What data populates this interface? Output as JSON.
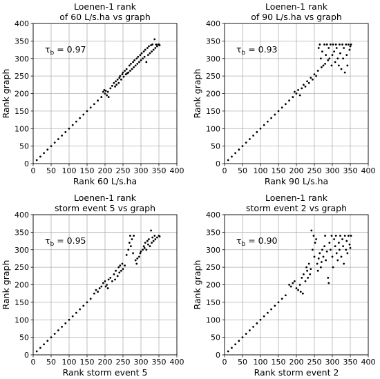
{
  "figure": {
    "panels": [
      {
        "id": "p60",
        "title_line1": "Loenen-1 rank",
        "title_line2": "of 60 L/s.ha vs graph",
        "xlabel": "Rank 60 L/s.ha",
        "ylabel": "Rank graph",
        "tau_label": "τ",
        "tau_sub": "b",
        "tau_value": " = 0.97"
      },
      {
        "id": "p90",
        "title_line1": "Loenen-1 rank",
        "title_line2": "of 90 L/s.ha vs graph",
        "xlabel": "Rank 90 L/s.ha",
        "ylabel": "Rank graph",
        "tau_label": "τ",
        "tau_sub": "b",
        "tau_value": " = 0.93"
      },
      {
        "id": "ps5",
        "title_line1": "Loenen-1 rank",
        "title_line2": "storm event 5 vs graph",
        "xlabel": "Rank storm event 5",
        "ylabel": "Rank graph",
        "tau_label": "τ",
        "tau_sub": "b",
        "tau_value": " = 0.95"
      },
      {
        "id": "ps2",
        "title_line1": "Loenen-1 rank",
        "title_line2": "storm event 2 vs graph",
        "xlabel": "Rank storm event 2",
        "ylabel": "Rank graph",
        "tau_label": "τ",
        "tau_sub": "b",
        "tau_value": " = 0.90"
      }
    ]
  },
  "chart_data": [
    {
      "type": "scatter",
      "title": "Loenen-1 rank of 60 L/s.ha vs graph",
      "xlabel": "Rank 60 L/s.ha",
      "ylabel": "Rank graph",
      "xlim": [
        0,
        400
      ],
      "ylim": [
        0,
        400
      ],
      "xticks": [
        "0",
        "50",
        "100",
        "150",
        "200",
        "250",
        "300",
        "350",
        "400"
      ],
      "yticks": [
        "0",
        "50",
        "100",
        "150",
        "200",
        "250",
        "300",
        "350",
        "400"
      ],
      "grid": true,
      "marker_color": "#000000",
      "points": [
        [
          10,
          10
        ],
        [
          20,
          20
        ],
        [
          30,
          30
        ],
        [
          40,
          40
        ],
        [
          50,
          50
        ],
        [
          60,
          60
        ],
        [
          70,
          70
        ],
        [
          80,
          80
        ],
        [
          90,
          90
        ],
        [
          100,
          100
        ],
        [
          110,
          110
        ],
        [
          120,
          120
        ],
        [
          130,
          130
        ],
        [
          140,
          140
        ],
        [
          150,
          150
        ],
        [
          160,
          160
        ],
        [
          170,
          170
        ],
        [
          180,
          180
        ],
        [
          190,
          190
        ],
        [
          195,
          205
        ],
        [
          198,
          210
        ],
        [
          200,
          200
        ],
        [
          202,
          208
        ],
        [
          205,
          195
        ],
        [
          208,
          205
        ],
        [
          210,
          190
        ],
        [
          215,
          215
        ],
        [
          220,
          222
        ],
        [
          225,
          230
        ],
        [
          228,
          220
        ],
        [
          230,
          235
        ],
        [
          232,
          225
        ],
        [
          235,
          240
        ],
        [
          238,
          230
        ],
        [
          240,
          245
        ],
        [
          242,
          250
        ],
        [
          245,
          240
        ],
        [
          248,
          255
        ],
        [
          250,
          260
        ],
        [
          252,
          248
        ],
        [
          255,
          265
        ],
        [
          258,
          255
        ],
        [
          260,
          270
        ],
        [
          262,
          258
        ],
        [
          265,
          260
        ],
        [
          268,
          280
        ],
        [
          270,
          265
        ],
        [
          272,
          285
        ],
        [
          275,
          270
        ],
        [
          278,
          290
        ],
        [
          280,
          275
        ],
        [
          282,
          295
        ],
        [
          285,
          280
        ],
        [
          288,
          300
        ],
        [
          290,
          285
        ],
        [
          292,
          305
        ],
        [
          295,
          290
        ],
        [
          298,
          310
        ],
        [
          300,
          295
        ],
        [
          302,
          315
        ],
        [
          305,
          300
        ],
        [
          308,
          320
        ],
        [
          310,
          305
        ],
        [
          312,
          325
        ],
        [
          315,
          290
        ],
        [
          318,
          330
        ],
        [
          320,
          310
        ],
        [
          322,
          335
        ],
        [
          325,
          315
        ],
        [
          328,
          338
        ],
        [
          330,
          320
        ],
        [
          332,
          340
        ],
        [
          335,
          325
        ],
        [
          338,
          355
        ],
        [
          340,
          330
        ],
        [
          342,
          340
        ],
        [
          345,
          335
        ],
        [
          348,
          340
        ],
        [
          350,
          340
        ],
        [
          352,
          338
        ]
      ],
      "annotation": "τb = 0.97"
    },
    {
      "type": "scatter",
      "title": "Loenen-1 rank of 90 L/s.ha vs graph",
      "xlabel": "Rank 90 L/s.ha",
      "ylabel": "Rank graph",
      "xlim": [
        0,
        400
      ],
      "ylim": [
        0,
        400
      ],
      "xticks": [
        "0",
        "50",
        "100",
        "150",
        "200",
        "250",
        "300",
        "350",
        "400"
      ],
      "yticks": [
        "0",
        "50",
        "100",
        "150",
        "200",
        "250",
        "300",
        "350",
        "400"
      ],
      "grid": true,
      "marker_color": "#000000",
      "points": [
        [
          10,
          10
        ],
        [
          20,
          20
        ],
        [
          30,
          30
        ],
        [
          40,
          40
        ],
        [
          50,
          50
        ],
        [
          60,
          60
        ],
        [
          70,
          70
        ],
        [
          80,
          80
        ],
        [
          90,
          90
        ],
        [
          100,
          100
        ],
        [
          110,
          110
        ],
        [
          120,
          120
        ],
        [
          130,
          130
        ],
        [
          140,
          140
        ],
        [
          150,
          150
        ],
        [
          160,
          160
        ],
        [
          170,
          170
        ],
        [
          180,
          180
        ],
        [
          190,
          190
        ],
        [
          195,
          205
        ],
        [
          200,
          200
        ],
        [
          205,
          210
        ],
        [
          210,
          195
        ],
        [
          215,
          215
        ],
        [
          220,
          225
        ],
        [
          225,
          220
        ],
        [
          230,
          235
        ],
        [
          235,
          230
        ],
        [
          240,
          245
        ],
        [
          245,
          240
        ],
        [
          250,
          255
        ],
        [
          255,
          250
        ],
        [
          260,
          265
        ],
        [
          262,
          330
        ],
        [
          265,
          340
        ],
        [
          268,
          300
        ],
        [
          270,
          275
        ],
        [
          272,
          320
        ],
        [
          275,
          280
        ],
        [
          278,
          340
        ],
        [
          280,
          285
        ],
        [
          282,
          310
        ],
        [
          285,
          340
        ],
        [
          288,
          295
        ],
        [
          290,
          330
        ],
        [
          292,
          300
        ],
        [
          295,
          340
        ],
        [
          298,
          280
        ],
        [
          300,
          310
        ],
        [
          302,
          340
        ],
        [
          305,
          320
        ],
        [
          308,
          290
        ],
        [
          310,
          340
        ],
        [
          312,
          330
        ],
        [
          315,
          300
        ],
        [
          318,
          280
        ],
        [
          320,
          340
        ],
        [
          322,
          315
        ],
        [
          325,
          270
        ],
        [
          328,
          340
        ],
        [
          330,
          300
        ],
        [
          332,
          330
        ],
        [
          335,
          260
        ],
        [
          338,
          340
        ],
        [
          340,
          310
        ],
        [
          342,
          280
        ],
        [
          345,
          340
        ],
        [
          348,
          325
        ],
        [
          350,
          335
        ],
        [
          352,
          340
        ]
      ],
      "annotation": "τb = 0.93"
    },
    {
      "type": "scatter",
      "title": "Loenen-1 rank storm event 5 vs graph",
      "xlabel": "Rank storm event 5",
      "ylabel": "Rank graph",
      "xlim": [
        0,
        400
      ],
      "ylim": [
        0,
        400
      ],
      "xticks": [
        "0",
        "50",
        "100",
        "150",
        "200",
        "250",
        "300",
        "350",
        "400"
      ],
      "yticks": [
        "0",
        "50",
        "100",
        "150",
        "200",
        "250",
        "300",
        "350",
        "400"
      ],
      "grid": true,
      "marker_color": "#000000",
      "points": [
        [
          10,
          10
        ],
        [
          20,
          20
        ],
        [
          30,
          30
        ],
        [
          40,
          40
        ],
        [
          50,
          50
        ],
        [
          60,
          60
        ],
        [
          70,
          70
        ],
        [
          80,
          80
        ],
        [
          90,
          90
        ],
        [
          100,
          100
        ],
        [
          110,
          110
        ],
        [
          120,
          120
        ],
        [
          130,
          130
        ],
        [
          140,
          140
        ],
        [
          150,
          150
        ],
        [
          160,
          160
        ],
        [
          170,
          175
        ],
        [
          175,
          185
        ],
        [
          180,
          180
        ],
        [
          185,
          190
        ],
        [
          190,
          195
        ],
        [
          195,
          205
        ],
        [
          200,
          210
        ],
        [
          202,
          195
        ],
        [
          205,
          200
        ],
        [
          208,
          190
        ],
        [
          210,
          215
        ],
        [
          215,
          220
        ],
        [
          220,
          210
        ],
        [
          225,
          230
        ],
        [
          228,
          215
        ],
        [
          230,
          240
        ],
        [
          235,
          225
        ],
        [
          238,
          250
        ],
        [
          240,
          235
        ],
        [
          242,
          255
        ],
        [
          245,
          240
        ],
        [
          248,
          260
        ],
        [
          250,
          245
        ],
        [
          255,
          255
        ],
        [
          260,
          285
        ],
        [
          265,
          300
        ],
        [
          268,
          320
        ],
        [
          270,
          340
        ],
        [
          272,
          310
        ],
        [
          275,
          330
        ],
        [
          278,
          290
        ],
        [
          280,
          340
        ],
        [
          285,
          270
        ],
        [
          288,
          260
        ],
        [
          290,
          275
        ],
        [
          295,
          280
        ],
        [
          298,
          290
        ],
        [
          300,
          295
        ],
        [
          305,
          300
        ],
        [
          308,
          310
        ],
        [
          310,
          305
        ],
        [
          312,
          320
        ],
        [
          315,
          300
        ],
        [
          318,
          325
        ],
        [
          320,
          315
        ],
        [
          322,
          330
        ],
        [
          325,
          310
        ],
        [
          328,
          355
        ],
        [
          330,
          320
        ],
        [
          332,
          335
        ],
        [
          335,
          325
        ],
        [
          338,
          340
        ],
        [
          340,
          330
        ],
        [
          345,
          335
        ],
        [
          350,
          340
        ],
        [
          352,
          338
        ]
      ],
      "annotation": "τb = 0.95"
    },
    {
      "type": "scatter",
      "title": "Loenen-1 rank storm event 2 vs graph",
      "xlabel": "Rank storm event 2",
      "ylabel": "Rank graph",
      "xlim": [
        0,
        400
      ],
      "ylim": [
        0,
        400
      ],
      "xticks": [
        "0",
        "50",
        "100",
        "150",
        "200",
        "250",
        "300",
        "350",
        "400"
      ],
      "yticks": [
        "0",
        "50",
        "100",
        "150",
        "200",
        "250",
        "300",
        "350",
        "400"
      ],
      "grid": true,
      "marker_color": "#000000",
      "points": [
        [
          10,
          10
        ],
        [
          20,
          20
        ],
        [
          30,
          30
        ],
        [
          40,
          40
        ],
        [
          50,
          50
        ],
        [
          60,
          60
        ],
        [
          70,
          70
        ],
        [
          80,
          80
        ],
        [
          90,
          90
        ],
        [
          100,
          100
        ],
        [
          110,
          110
        ],
        [
          120,
          120
        ],
        [
          130,
          130
        ],
        [
          140,
          140
        ],
        [
          150,
          150
        ],
        [
          160,
          160
        ],
        [
          170,
          170
        ],
        [
          180,
          200
        ],
        [
          185,
          195
        ],
        [
          190,
          205
        ],
        [
          195,
          210
        ],
        [
          200,
          190
        ],
        [
          205,
          185
        ],
        [
          210,
          200
        ],
        [
          212,
          180
        ],
        [
          215,
          220
        ],
        [
          218,
          175
        ],
        [
          220,
          230
        ],
        [
          225,
          210
        ],
        [
          228,
          250
        ],
        [
          230,
          240
        ],
        [
          232,
          220
        ],
        [
          235,
          260
        ],
        [
          238,
          230
        ],
        [
          240,
          245
        ],
        [
          242,
          355
        ],
        [
          245,
          300
        ],
        [
          248,
          340
        ],
        [
          250,
          280
        ],
        [
          252,
          320
        ],
        [
          255,
          330
        ],
        [
          258,
          260
        ],
        [
          260,
          240
        ],
        [
          262,
          275
        ],
        [
          265,
          290
        ],
        [
          268,
          250
        ],
        [
          270,
          265
        ],
        [
          272,
          300
        ],
        [
          275,
          280
        ],
        [
          278,
          310
        ],
        [
          280,
          340
        ],
        [
          282,
          270
        ],
        [
          285,
          295
        ],
        [
          288,
          220
        ],
        [
          290,
          205
        ],
        [
          292,
          320
        ],
        [
          295,
          300
        ],
        [
          298,
          340
        ],
        [
          300,
          280
        ],
        [
          302,
          250
        ],
        [
          305,
          330
        ],
        [
          308,
          310
        ],
        [
          310,
          340
        ],
        [
          312,
          290
        ],
        [
          315,
          270
        ],
        [
          318,
          320
        ],
        [
          320,
          300
        ],
        [
          322,
          340
        ],
        [
          325,
          280
        ],
        [
          328,
          330
        ],
        [
          330,
          310
        ],
        [
          332,
          260
        ],
        [
          335,
          340
        ],
        [
          338,
          300
        ],
        [
          340,
          325
        ],
        [
          342,
          290
        ],
        [
          345,
          340
        ],
        [
          348,
          315
        ],
        [
          350,
          305
        ],
        [
          352,
          340
        ]
      ],
      "annotation": "τb = 0.90"
    }
  ]
}
